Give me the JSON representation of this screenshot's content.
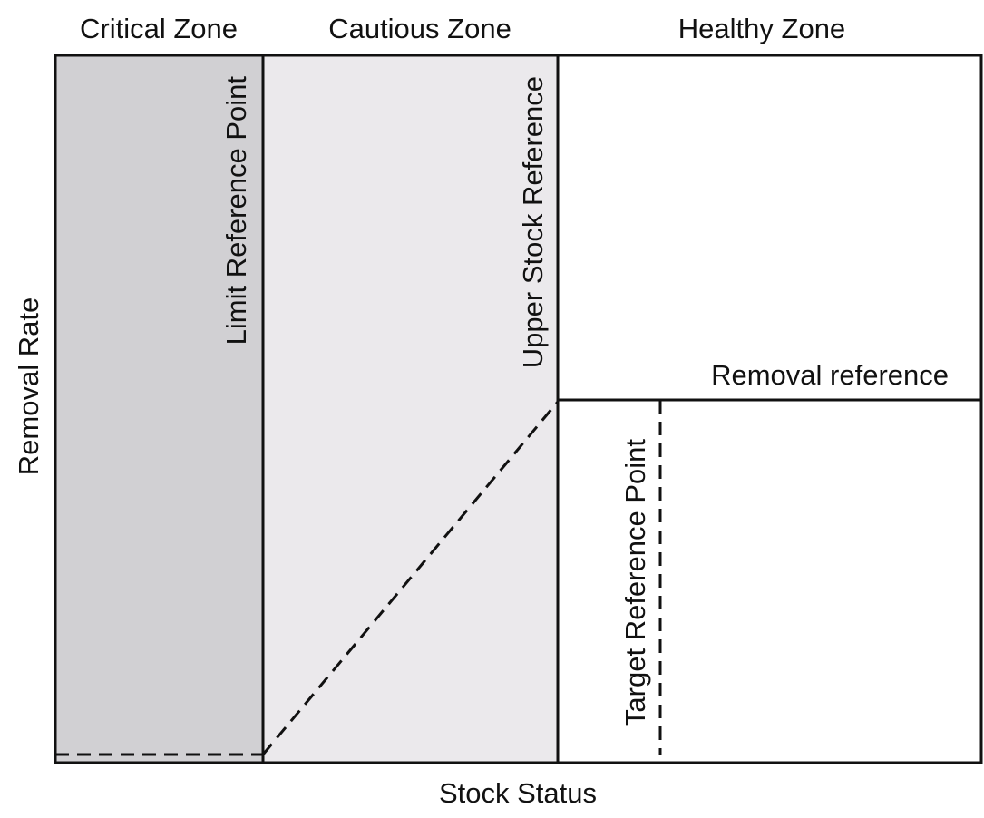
{
  "zones": {
    "critical": "Critical Zone",
    "cautious": "Cautious Zone",
    "healthy": "Healthy Zone"
  },
  "axes": {
    "x_label": "Stock Status",
    "y_label": "Removal Rate"
  },
  "reference_labels": {
    "limit": "Limit Reference Point",
    "upper_stock": "Upper Stock Reference",
    "removal": "Removal reference",
    "target": "Target Reference Point"
  },
  "colors": {
    "critical_fill": "#d1d0d3",
    "cautious_fill": "#ebe9ec",
    "healthy_fill": "#ffffff",
    "line": "#111111"
  }
}
